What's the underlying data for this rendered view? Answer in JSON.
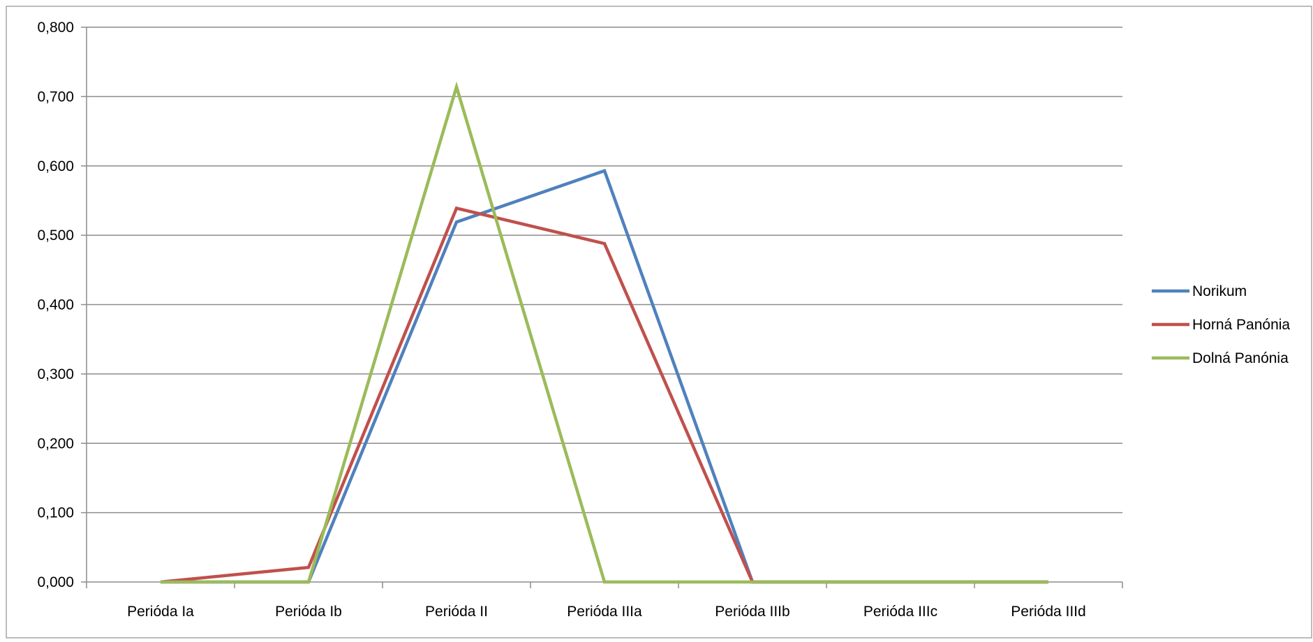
{
  "chart_data": {
    "type": "line",
    "categories": [
      "Perióda Ia",
      "Perióda Ib",
      "Perióda II",
      "Perióda IIIa",
      "Perióda IIIb",
      "Perióda IIIc",
      "Perióda IIId"
    ],
    "series": [
      {
        "name": "Norikum",
        "color": "#4F81BD",
        "values": [
          0.0,
          0.0,
          0.519,
          0.593,
          0.0,
          0.0,
          0.0
        ]
      },
      {
        "name": "Horná Panónia",
        "color": "#C0504D",
        "values": [
          0.0,
          0.021,
          0.539,
          0.488,
          0.0,
          0.0,
          0.0
        ]
      },
      {
        "name": "Dolná Panónia",
        "color": "#9BBB59",
        "values": [
          0.0,
          0.0,
          0.714,
          0.0,
          0.0,
          0.0,
          0.0
        ]
      }
    ],
    "y_ticks": [
      "0,000",
      "0,100",
      "0,200",
      "0,300",
      "0,400",
      "0,500",
      "0,600",
      "0,700",
      "0,800"
    ],
    "ylim": [
      0,
      0.8
    ],
    "grid": true,
    "legend_position": "right",
    "title": "",
    "xlabel": "",
    "ylabel": ""
  }
}
